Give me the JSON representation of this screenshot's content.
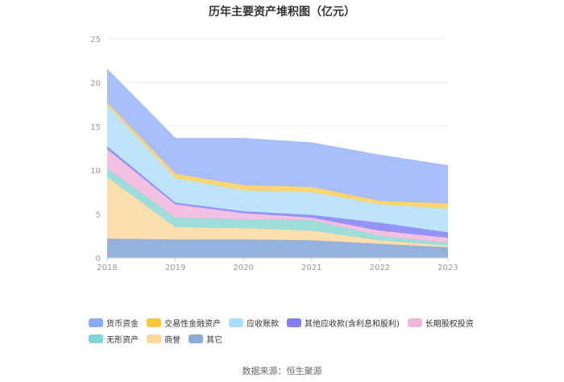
{
  "chart_data": {
    "type": "area",
    "title": "历年主要资产堆积图（亿元）",
    "x": [
      "2018",
      "2019",
      "2020",
      "2021",
      "2022",
      "2023"
    ],
    "ylim": [
      0,
      25
    ],
    "yticks": [
      0,
      5,
      10,
      15,
      20,
      25
    ],
    "stacked": true,
    "series": [
      {
        "name": "其它",
        "color": "#8eaedb",
        "values": [
          2.2,
          2.1,
          2.1,
          2.0,
          1.6,
          1.2
        ]
      },
      {
        "name": "商誉",
        "color": "#fbdcaa",
        "values": [
          7.0,
          1.4,
          1.3,
          1.1,
          0.4,
          0.2
        ]
      },
      {
        "name": "无形资产",
        "color": "#98dbd8",
        "values": [
          1.0,
          1.1,
          1.0,
          1.2,
          0.5,
          0.3
        ]
      },
      {
        "name": "长期股权投资",
        "color": "#f1bde0",
        "values": [
          2.2,
          1.5,
          0.7,
          0.3,
          0.6,
          0.6
        ]
      },
      {
        "name": "其他应收款(含利息和股利)",
        "color": "#8f8ef3",
        "values": [
          0.3,
          0.2,
          0.2,
          0.3,
          0.9,
          0.6
        ]
      },
      {
        "name": "应收账款",
        "color": "#b9e3fb",
        "values": [
          4.7,
          2.8,
          2.4,
          2.6,
          2.1,
          2.7
        ]
      },
      {
        "name": "交易性金融资产",
        "color": "#fdd36a",
        "values": [
          0.3,
          0.5,
          0.6,
          0.6,
          0.4,
          0.6
        ]
      },
      {
        "name": "货币资金",
        "color": "#a5bbfb",
        "values": [
          3.8,
          4.0,
          5.3,
          5.0,
          5.2,
          4.3
        ]
      }
    ]
  },
  "legend": {
    "row1": [
      {
        "label": "货币资金",
        "color": "#8ea8f9"
      },
      {
        "label": "交易性金融资产",
        "color": "#fdc63f"
      },
      {
        "label": "应收账款",
        "color": "#a9defb"
      },
      {
        "label": "其他应收款(含利息和股利)",
        "color": "#7f7ef2"
      },
      {
        "label": "长期股权投资",
        "color": "#efb6dc"
      }
    ],
    "row2": [
      {
        "label": "无形资产",
        "color": "#7fd6d2"
      },
      {
        "label": "商誉",
        "color": "#fbd89c"
      },
      {
        "label": "其它",
        "color": "#8fa9d8"
      }
    ]
  },
  "source": "数据来源：恒生聚源"
}
